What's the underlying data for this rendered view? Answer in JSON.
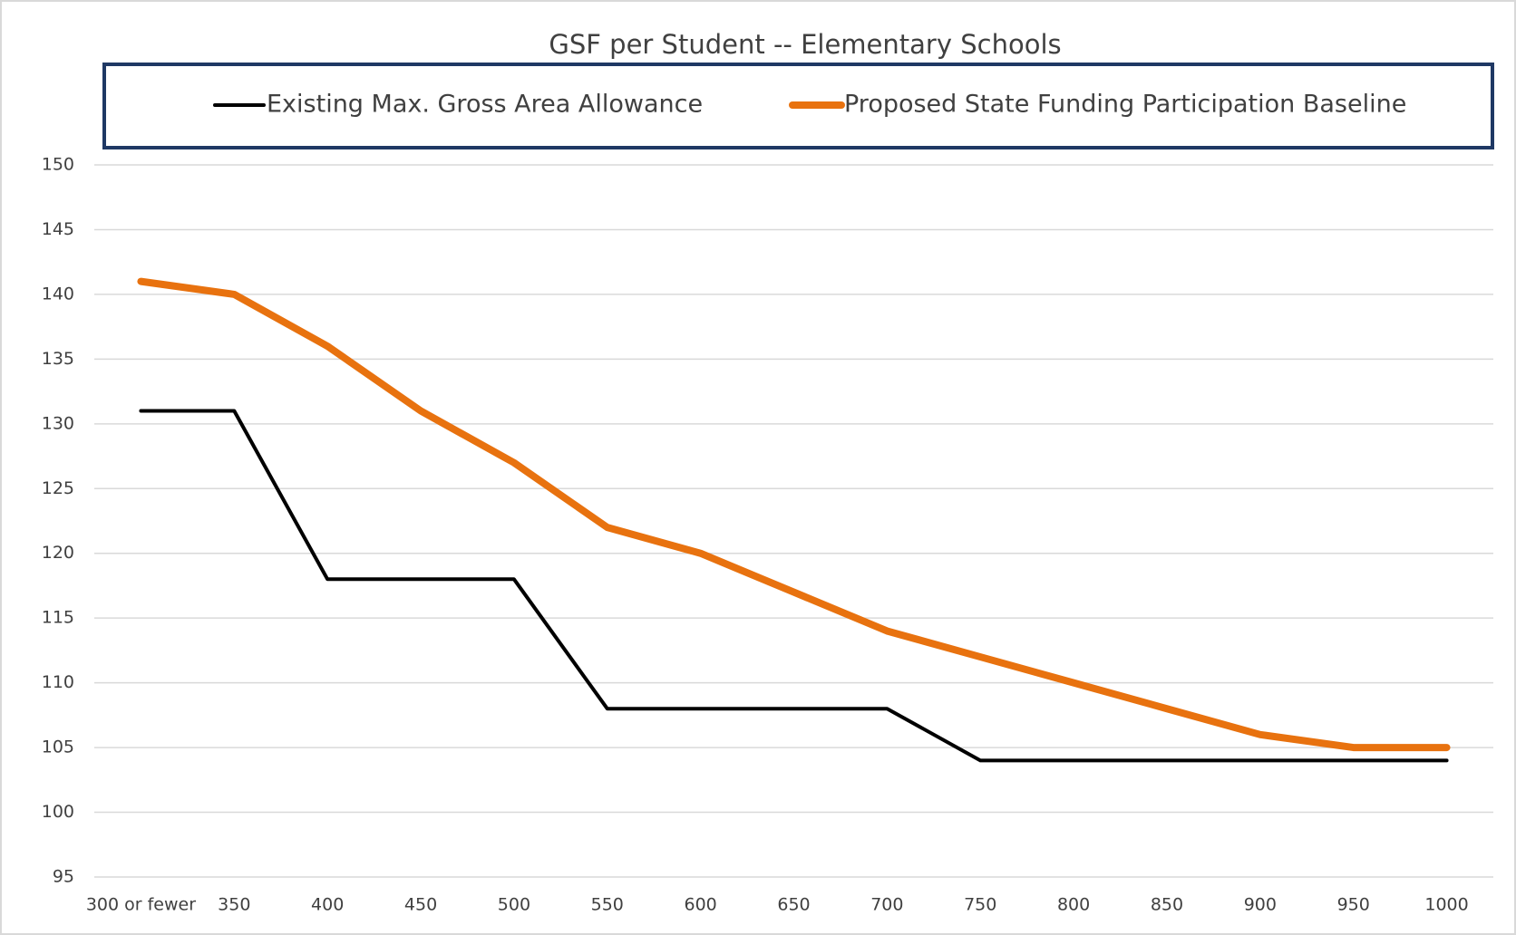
{
  "chart_data": {
    "type": "line",
    "title": "GSF per Student -- Elementary Schools",
    "categories": [
      "300 or fewer",
      "350",
      "400",
      "450",
      "500",
      "550",
      "600",
      "650",
      "700",
      "750",
      "800",
      "850",
      "900",
      "950",
      "1000"
    ],
    "series": [
      {
        "name": "Existing Max. Gross Area Allowance",
        "color": "#000000",
        "values": [
          131,
          131,
          118,
          118,
          118,
          108,
          108,
          108,
          108,
          104,
          104,
          104,
          104,
          104,
          104
        ]
      },
      {
        "name": "Proposed State Funding Participation Baseline",
        "color": "#e8720f",
        "values": [
          141,
          140,
          136,
          131,
          127,
          122,
          120,
          117,
          114,
          112,
          110,
          108,
          106,
          105,
          105
        ]
      }
    ],
    "ylim": [
      95,
      150
    ],
    "yticks": [
      95,
      100,
      105,
      110,
      115,
      120,
      125,
      130,
      135,
      140,
      145,
      150
    ],
    "grid": true,
    "legend": "top"
  }
}
